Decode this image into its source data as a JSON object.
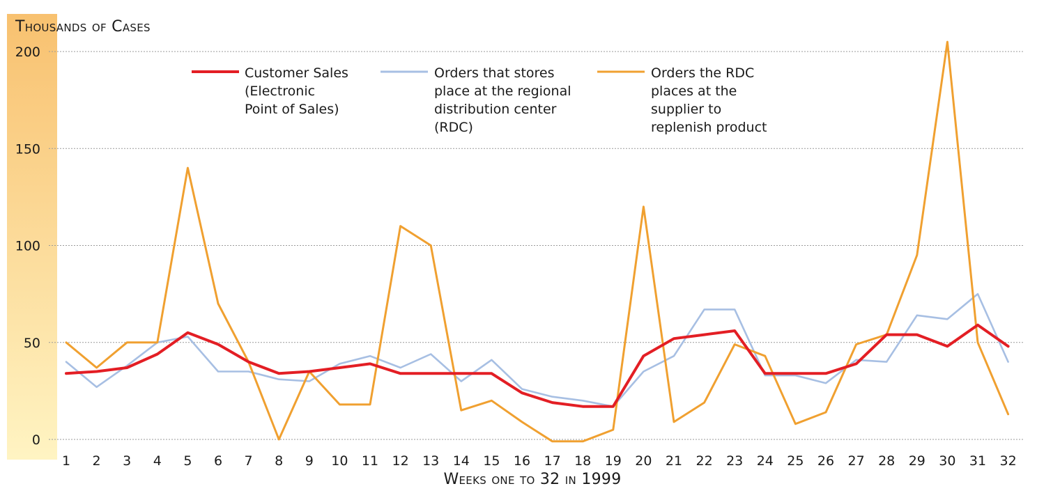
{
  "chart_data": {
    "type": "line",
    "title": "",
    "xlabel": "Weeks one to 32 in 1999",
    "ylabel": "Thousands of Cases",
    "ylim": [
      0,
      200
    ],
    "yticks": [
      0,
      50,
      100,
      150,
      200
    ],
    "grid": "horizontal-dotted",
    "legend_position": "top",
    "x": [
      "1",
      "2",
      "3",
      "4",
      "5",
      "6",
      "7",
      "8",
      "9",
      "10",
      "11",
      "12",
      "13",
      "14",
      "15",
      "16",
      "17",
      "18",
      "19",
      "20",
      "21",
      "22",
      "23",
      "24",
      "25",
      "26",
      "27",
      "28",
      "29",
      "30",
      "31",
      "32"
    ],
    "series": [
      {
        "name": "Customer Sales (Electronic Point of Sales)",
        "color": "#e31e24",
        "values": [
          34,
          35,
          37,
          44,
          55,
          49,
          40,
          34,
          35,
          37,
          39,
          34,
          34,
          34,
          34,
          24,
          19,
          17,
          17,
          43,
          52,
          54,
          56,
          34,
          34,
          34,
          39,
          54,
          54,
          48,
          59,
          48
        ]
      },
      {
        "name": "Orders that stores place at the regional distribution center (RDC)",
        "color": "#a7bfe3",
        "values": [
          40,
          27,
          38,
          50,
          53,
          35,
          35,
          31,
          30,
          39,
          43,
          37,
          44,
          30,
          41,
          26,
          22,
          20,
          17,
          35,
          43,
          67,
          67,
          33,
          33,
          29,
          41,
          40,
          64,
          62,
          75,
          40
        ]
      },
      {
        "name": "Orders the RDC places at the supplier to replenish product",
        "color": "#f0a030",
        "values": [
          50,
          37,
          50,
          50,
          140,
          70,
          40,
          0,
          35,
          18,
          18,
          110,
          100,
          15,
          20,
          9,
          -1,
          -1,
          5,
          120,
          9,
          19,
          49,
          43,
          8,
          14,
          49,
          54,
          95,
          205,
          50,
          13
        ]
      }
    ],
    "legend": [
      {
        "color": "#e31e24",
        "text": "Customer Sales\n(Electronic\nPoint of Sales)"
      },
      {
        "color": "#a7bfe3",
        "text": "Orders that stores\nplace at the regional\ndistribution center\n(RDC)"
      },
      {
        "color": "#f0a030",
        "text": "Orders the RDC\nplaces at the\nsupplier to\nreplenish product"
      }
    ]
  }
}
